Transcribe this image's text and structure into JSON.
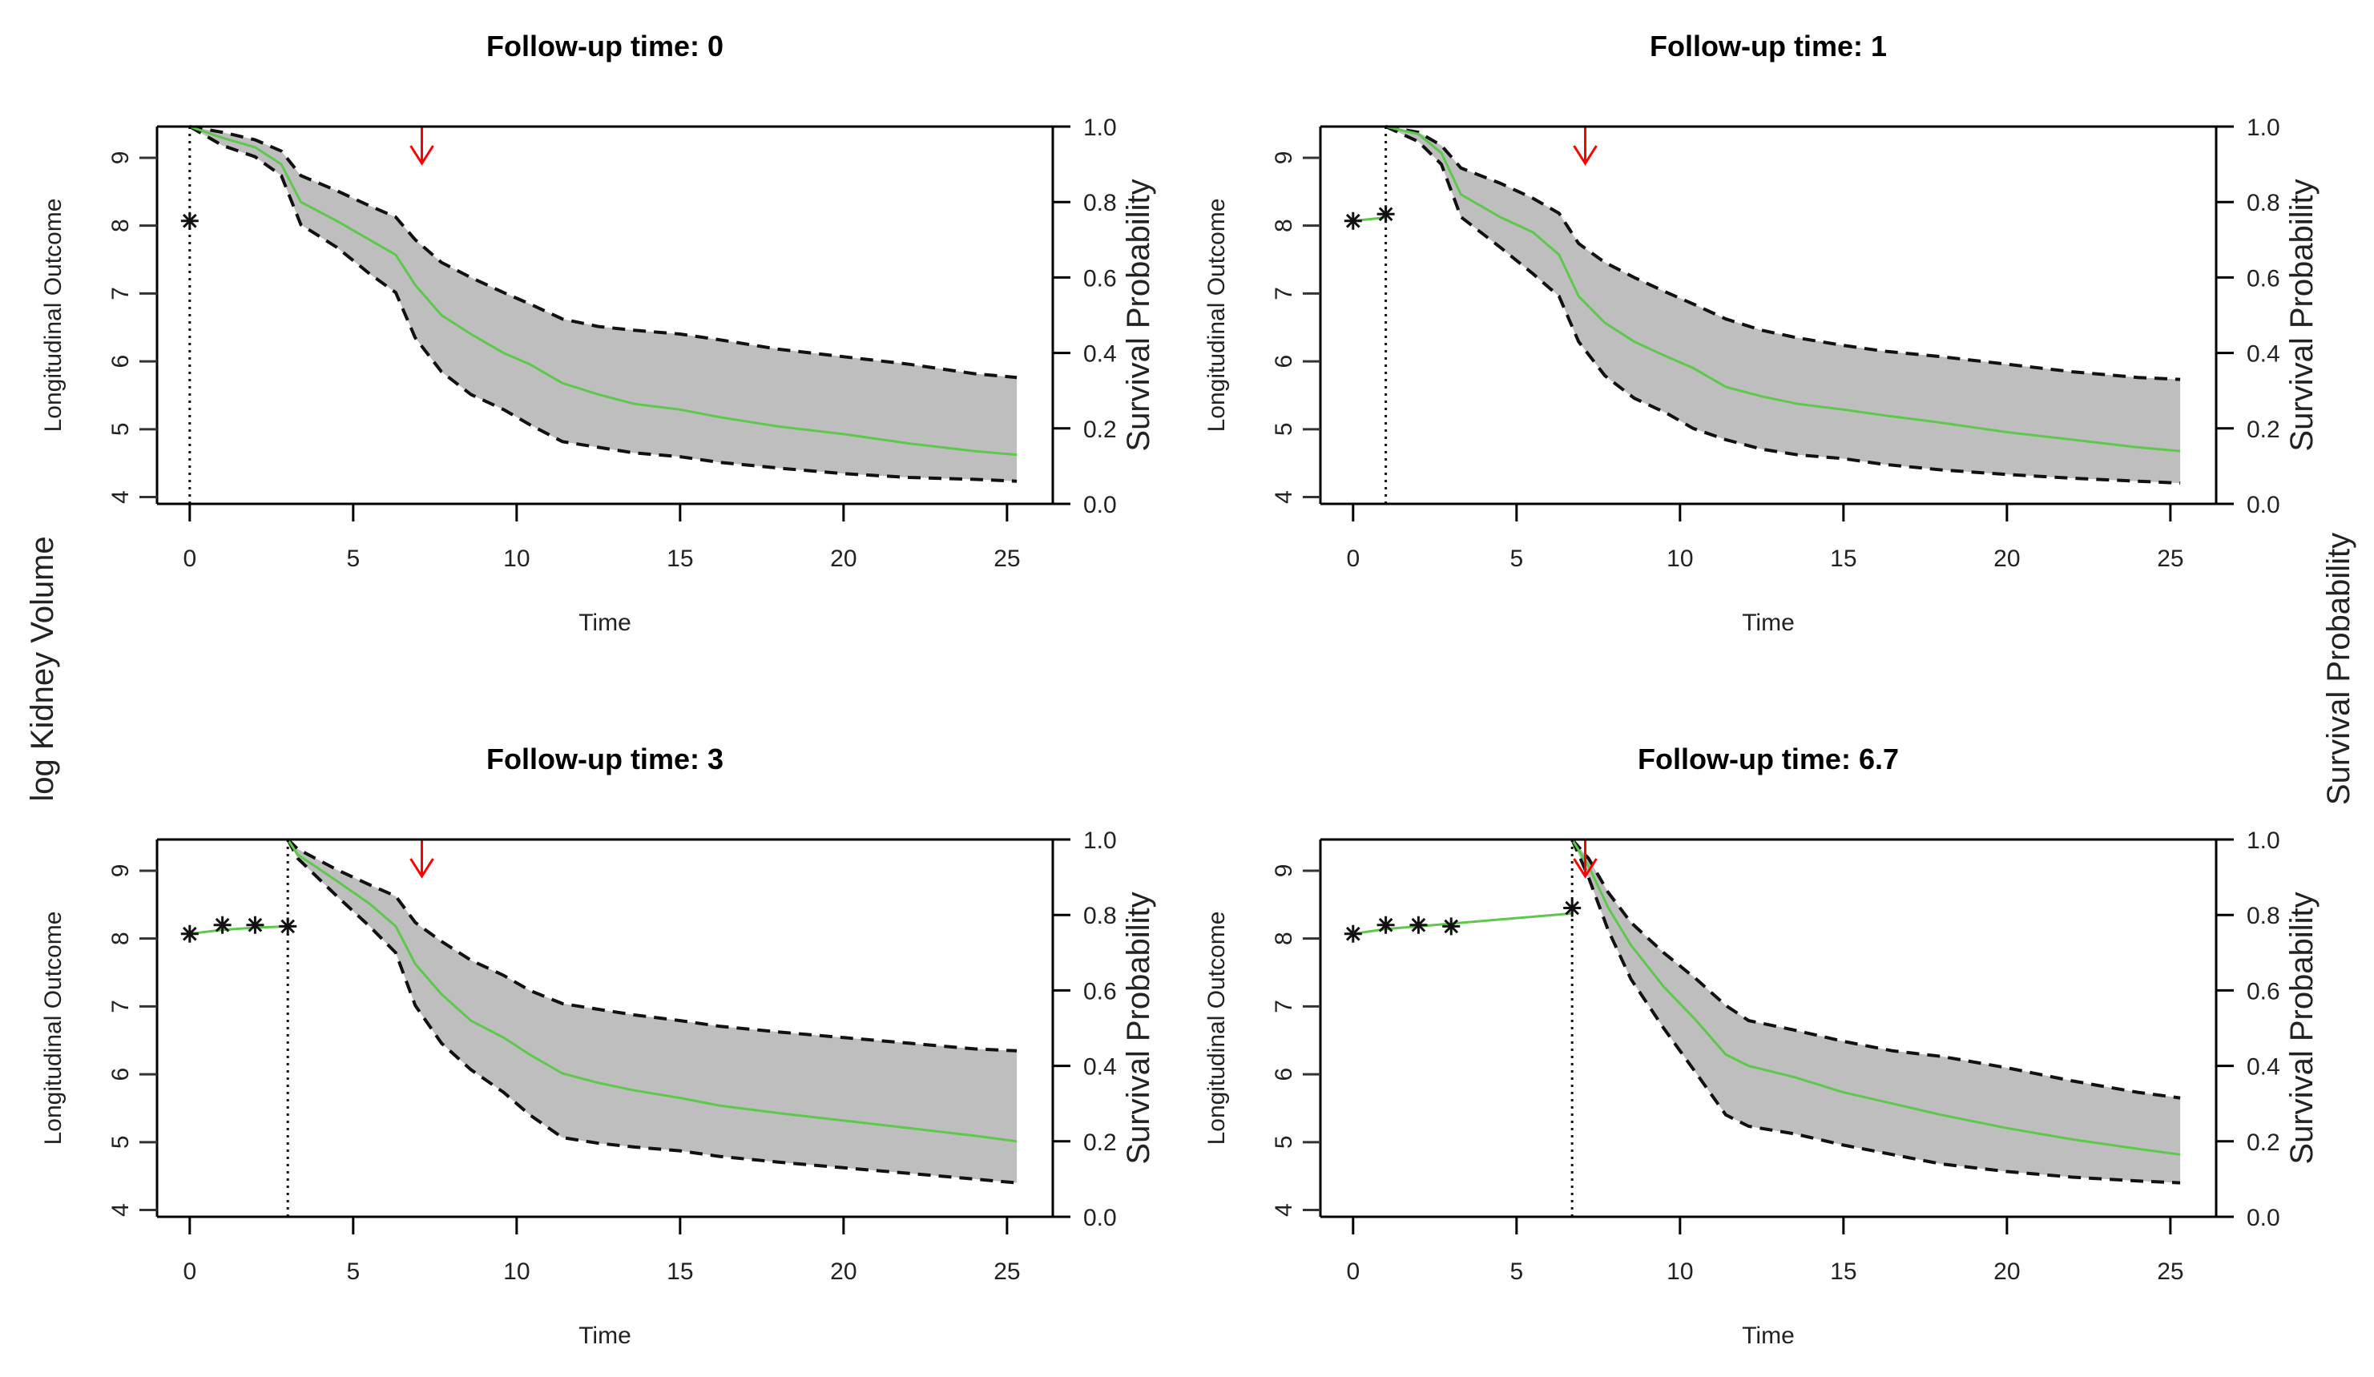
{
  "outer_labels": {
    "left": "log Kidney Volume",
    "right": "Survival Probability"
  },
  "chart_data": [
    {
      "type": "line",
      "title": "Follow-up time: 0",
      "follow_up_time": 0,
      "xlabel": "Time",
      "ylabel_left": "Longitudinal Outcome",
      "ylabel_right": "Survival Probability",
      "x_ticks": [
        0,
        5,
        10,
        15,
        20,
        25
      ],
      "y_left_ticks": [
        4,
        5,
        6,
        7,
        8,
        9
      ],
      "y_right_ticks": [
        "0.0",
        "0.2",
        "0.4",
        "0.6",
        "0.8",
        "1.0"
      ],
      "xlim": [
        -1,
        26.4
      ],
      "ylim_left": [
        3.9,
        9.46
      ],
      "ylim_right": [
        0,
        1
      ],
      "event_arrow_time": 7.1,
      "observed": {
        "x": [
          0
        ],
        "y": [
          8.07
        ]
      },
      "fitted_longitudinal": {
        "x": [
          0
        ],
        "y": [
          8.07
        ]
      },
      "survival": {
        "time": [
          0,
          1,
          2,
          2.8,
          3.4,
          4.5,
          5.5,
          6.3,
          6.9,
          7.7,
          8.6,
          9.6,
          10.4,
          11.4,
          12.5,
          13.6,
          15.0,
          16.2,
          18.0,
          20.0,
          22.0,
          24.0,
          25.3
        ],
        "mean": [
          1.0,
          0.97,
          0.945,
          0.9,
          0.8,
          0.75,
          0.7,
          0.66,
          0.58,
          0.5,
          0.45,
          0.4,
          0.37,
          0.32,
          0.29,
          0.265,
          0.25,
          0.23,
          0.205,
          0.185,
          0.16,
          0.14,
          0.13
        ],
        "upper": [
          1.0,
          0.985,
          0.965,
          0.935,
          0.87,
          0.83,
          0.79,
          0.76,
          0.7,
          0.64,
          0.6,
          0.56,
          0.53,
          0.49,
          0.47,
          0.46,
          0.45,
          0.435,
          0.41,
          0.39,
          0.37,
          0.345,
          0.335
        ],
        "lower": [
          1.0,
          0.95,
          0.92,
          0.87,
          0.74,
          0.68,
          0.61,
          0.56,
          0.44,
          0.35,
          0.29,
          0.25,
          0.21,
          0.165,
          0.15,
          0.135,
          0.125,
          0.11,
          0.095,
          0.08,
          0.07,
          0.065,
          0.06
        ]
      }
    },
    {
      "type": "line",
      "title": "Follow-up time: 1",
      "follow_up_time": 1,
      "xlabel": "Time",
      "ylabel_left": "Longitudinal Outcome",
      "ylabel_right": "Survival Probability",
      "x_ticks": [
        0,
        5,
        10,
        15,
        20,
        25
      ],
      "y_left_ticks": [
        4,
        5,
        6,
        7,
        8,
        9
      ],
      "y_right_ticks": [
        "0.0",
        "0.2",
        "0.4",
        "0.6",
        "0.8",
        "1.0"
      ],
      "xlim": [
        -1,
        26.4
      ],
      "ylim_left": [
        3.9,
        9.46
      ],
      "ylim_right": [
        0,
        1
      ],
      "event_arrow_time": 7.1,
      "observed": {
        "x": [
          0,
          1
        ],
        "y": [
          8.07,
          8.17
        ]
      },
      "fitted_longitudinal": {
        "x": [
          0,
          1
        ],
        "y": [
          8.07,
          8.12
        ]
      },
      "survival": {
        "time": [
          1,
          2,
          2.7,
          3.3,
          4.5,
          5.5,
          6.3,
          6.9,
          7.7,
          8.6,
          9.6,
          10.4,
          11.4,
          12.5,
          13.6,
          15.0,
          16.2,
          18.0,
          20.0,
          22.0,
          24.0,
          25.3
        ],
        "mean": [
          1.0,
          0.98,
          0.93,
          0.82,
          0.76,
          0.72,
          0.66,
          0.55,
          0.48,
          0.43,
          0.39,
          0.36,
          0.31,
          0.285,
          0.265,
          0.25,
          0.235,
          0.215,
          0.19,
          0.17,
          0.15,
          0.14
        ],
        "upper": [
          1.0,
          0.985,
          0.95,
          0.89,
          0.85,
          0.81,
          0.77,
          0.69,
          0.64,
          0.6,
          0.56,
          0.53,
          0.49,
          0.46,
          0.44,
          0.42,
          0.405,
          0.39,
          0.37,
          0.35,
          0.335,
          0.33
        ],
        "lower": [
          1.0,
          0.96,
          0.9,
          0.76,
          0.68,
          0.61,
          0.55,
          0.43,
          0.34,
          0.28,
          0.24,
          0.2,
          0.17,
          0.145,
          0.13,
          0.12,
          0.105,
          0.09,
          0.078,
          0.068,
          0.06,
          0.055
        ]
      }
    },
    {
      "type": "line",
      "title": "Follow-up time: 3",
      "follow_up_time": 3,
      "xlabel": "Time",
      "ylabel_left": "Longitudinal Outcome",
      "ylabel_right": "Survival Probability",
      "x_ticks": [
        0,
        5,
        10,
        15,
        20,
        25
      ],
      "y_left_ticks": [
        4,
        5,
        6,
        7,
        8,
        9
      ],
      "y_right_ticks": [
        "0.0",
        "0.2",
        "0.4",
        "0.6",
        "0.8",
        "1.0"
      ],
      "xlim": [
        -1,
        26.4
      ],
      "ylim_left": [
        3.9,
        9.46
      ],
      "ylim_right": [
        0,
        1
      ],
      "event_arrow_time": 7.1,
      "observed": {
        "x": [
          0,
          1,
          2,
          3
        ],
        "y": [
          8.07,
          8.2,
          8.2,
          8.18
        ]
      },
      "fitted_longitudinal": {
        "x": [
          0,
          1,
          2,
          3
        ],
        "y": [
          8.07,
          8.13,
          8.16,
          8.18
        ]
      },
      "survival": {
        "time": [
          3,
          3.3,
          4.5,
          5.5,
          6.3,
          6.9,
          7.7,
          8.6,
          9.6,
          10.4,
          11.4,
          12.5,
          13.6,
          15.0,
          16.2,
          18.0,
          20.0,
          22.0,
          24.0,
          25.3
        ],
        "mean": [
          1.0,
          0.96,
          0.89,
          0.83,
          0.77,
          0.67,
          0.59,
          0.52,
          0.475,
          0.43,
          0.38,
          0.355,
          0.335,
          0.315,
          0.295,
          0.275,
          0.255,
          0.235,
          0.215,
          0.2
        ],
        "upper": [
          1.0,
          0.975,
          0.92,
          0.88,
          0.85,
          0.78,
          0.73,
          0.68,
          0.64,
          0.6,
          0.565,
          0.55,
          0.535,
          0.52,
          0.505,
          0.49,
          0.475,
          0.46,
          0.445,
          0.44
        ],
        "lower": [
          1.0,
          0.95,
          0.85,
          0.77,
          0.7,
          0.56,
          0.46,
          0.39,
          0.33,
          0.27,
          0.21,
          0.195,
          0.185,
          0.175,
          0.16,
          0.145,
          0.13,
          0.115,
          0.1,
          0.09
        ]
      }
    },
    {
      "type": "line",
      "title": "Follow-up time: 6.7",
      "follow_up_time": 6.7,
      "xlabel": "Time",
      "ylabel_left": "Longitudinal Outcome",
      "ylabel_right": "Survival Probability",
      "x_ticks": [
        0,
        5,
        10,
        15,
        20,
        25
      ],
      "y_left_ticks": [
        4,
        5,
        6,
        7,
        8,
        9
      ],
      "y_right_ticks": [
        "0.0",
        "0.2",
        "0.4",
        "0.6",
        "0.8",
        "1.0"
      ],
      "xlim": [
        -1,
        26.4
      ],
      "ylim_left": [
        3.9,
        9.46
      ],
      "ylim_right": [
        0,
        1
      ],
      "event_arrow_time": 7.1,
      "observed": {
        "x": [
          0,
          1,
          2,
          3,
          6.7
        ],
        "y": [
          8.07,
          8.2,
          8.2,
          8.18,
          8.45
        ]
      },
      "fitted_longitudinal": {
        "x": [
          0,
          1,
          2,
          3,
          6.7
        ],
        "y": [
          8.07,
          8.14,
          8.18,
          8.22,
          8.37
        ]
      },
      "survival": {
        "time": [
          6.7,
          7.2,
          7.8,
          8.5,
          9.5,
          10.5,
          11.4,
          12.1,
          13.5,
          15.0,
          16.5,
          18.0,
          20.0,
          22.0,
          24.0,
          25.3
        ],
        "mean": [
          1.0,
          0.93,
          0.82,
          0.72,
          0.61,
          0.52,
          0.43,
          0.4,
          0.37,
          0.33,
          0.3,
          0.27,
          0.235,
          0.205,
          0.18,
          0.165
        ],
        "upper": [
          1.0,
          0.95,
          0.86,
          0.78,
          0.7,
          0.63,
          0.56,
          0.52,
          0.495,
          0.465,
          0.44,
          0.425,
          0.395,
          0.36,
          0.33,
          0.315
        ],
        "lower": [
          1.0,
          0.9,
          0.76,
          0.63,
          0.5,
          0.38,
          0.27,
          0.24,
          0.22,
          0.19,
          0.165,
          0.14,
          0.12,
          0.105,
          0.095,
          0.09
        ]
      }
    }
  ],
  "colors": {
    "band_fill": "#bebebe",
    "survival_line": "#5dc84b",
    "event_arrow": "#ff0000",
    "axis": "#000000"
  }
}
